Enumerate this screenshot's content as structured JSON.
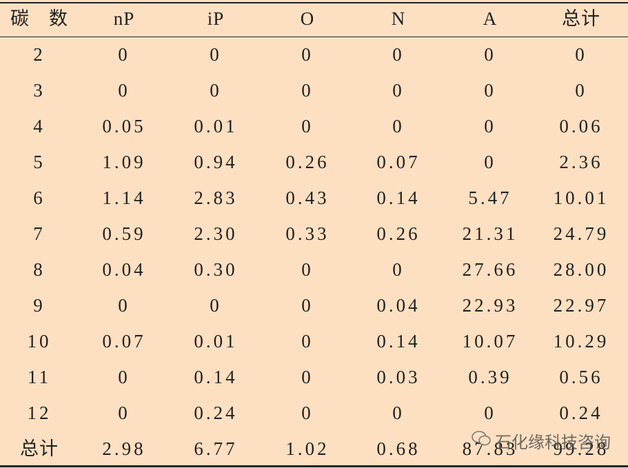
{
  "table": {
    "header": [
      "碳　数",
      "nP",
      "iP",
      "O",
      "N",
      "A",
      "总计"
    ],
    "rows": [
      [
        "2",
        "0",
        "0",
        "0",
        "0",
        "0",
        "0"
      ],
      [
        "3",
        "0",
        "0",
        "0",
        "0",
        "0",
        "0"
      ],
      [
        "4",
        "0.05",
        "0.01",
        "0",
        "0",
        "0",
        "0.06"
      ],
      [
        "5",
        "1.09",
        "0.94",
        "0.26",
        "0.07",
        "0",
        "2.36"
      ],
      [
        "6",
        "1.14",
        "2.83",
        "0.43",
        "0.14",
        "5.47",
        "10.01"
      ],
      [
        "7",
        "0.59",
        "2.30",
        "0.33",
        "0.26",
        "21.31",
        "24.79"
      ],
      [
        "8",
        "0.04",
        "0.30",
        "0",
        "0",
        "27.66",
        "28.00"
      ],
      [
        "9",
        "0",
        "0",
        "0",
        "0.04",
        "22.93",
        "22.97"
      ],
      [
        "10",
        "0.07",
        "0.01",
        "0",
        "0.14",
        "10.07",
        "10.29"
      ],
      [
        "11",
        "0",
        "0.14",
        "0",
        "0.03",
        "0.39",
        "0.56"
      ],
      [
        "12",
        "0",
        "0.24",
        "0",
        "0",
        "0",
        "0.24"
      ],
      [
        "总计",
        "2.98",
        "6.77",
        "1.02",
        "0.68",
        "87.83",
        "99.28"
      ]
    ]
  },
  "watermark": "石化缘科技咨询"
}
